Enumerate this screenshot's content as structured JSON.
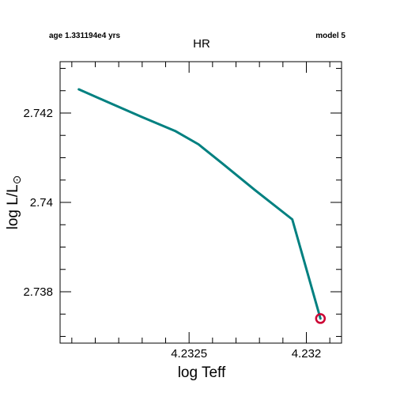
{
  "header": {
    "age_label": "age 1.331194e4 yrs",
    "model_label": "model 5",
    "title": "HR"
  },
  "chart_data": {
    "type": "line",
    "title": "HR",
    "xlabel": "log Teff",
    "ylabel_main": "log L/L",
    "ylabel_symbol": "⊙",
    "xlim": [
      4.23305,
      4.23185
    ],
    "ylim": [
      2.73685,
      2.74315
    ],
    "x_inverted": true,
    "x_major_ticks": [
      4.2325,
      4.232
    ],
    "x_tick_labels": [
      "4.2325",
      "4.232"
    ],
    "x_minor_step": 0.0001,
    "y_major_ticks": [
      2.738,
      2.74,
      2.742
    ],
    "y_tick_labels": [
      "2.738",
      "2.74",
      "2.742"
    ],
    "y_minor_step": 0.0005,
    "grid": false,
    "series": [
      {
        "color": "#008080",
        "x": [
          4.23297,
          4.23284,
          4.2327,
          4.23256,
          4.23246,
          4.23236,
          4.23222,
          4.23206,
          4.23194
        ],
        "y": [
          2.74253,
          2.74223,
          2.74191,
          2.7416,
          2.7413,
          2.74088,
          2.74028,
          2.73962,
          2.7374
        ]
      }
    ],
    "current_point": {
      "x": 4.23194,
      "y": 2.7374,
      "color": "#cc0033"
    }
  }
}
